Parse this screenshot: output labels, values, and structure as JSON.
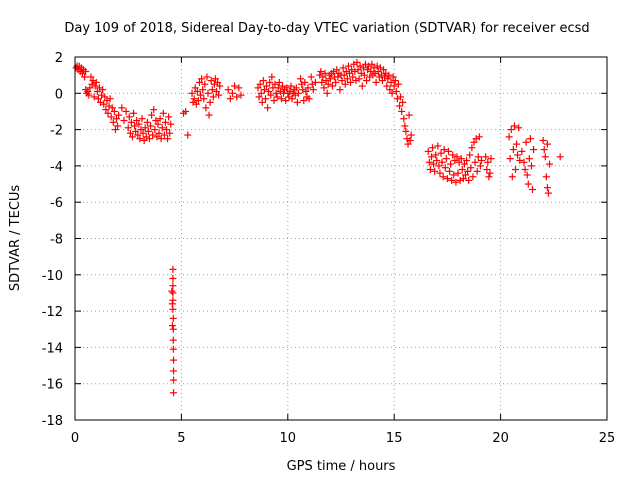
{
  "chart_data": {
    "type": "scatter",
    "title": "Day 109 of 2018, Sidereal Day-to-day VTEC variation (SDTVAR) for receiver ecsd",
    "xlabel": "GPS time / hours",
    "ylabel": "SDTVAR / TECUs",
    "xlim": [
      0,
      25
    ],
    "ylim": [
      -18,
      2
    ],
    "xticks": [
      0,
      5,
      10,
      15,
      20,
      25
    ],
    "yticks": [
      -18,
      -16,
      -14,
      -12,
      -10,
      -8,
      -6,
      -4,
      -2,
      0,
      2
    ],
    "grid": true,
    "marker": "+",
    "color": "#ff0000",
    "points": [
      [
        0.05,
        1.4
      ],
      [
        0.1,
        1.5
      ],
      [
        0.15,
        1.3
      ],
      [
        0.2,
        1.5
      ],
      [
        0.25,
        1.2
      ],
      [
        0.3,
        1.4
      ],
      [
        0.35,
        1.1
      ],
      [
        0.4,
        1.3
      ],
      [
        0.45,
        0.9
      ],
      [
        0.5,
        1.2
      ],
      [
        0.5,
        0.2
      ],
      [
        0.55,
        0.0
      ],
      [
        0.6,
        0.1
      ],
      [
        0.65,
        -0.1
      ],
      [
        0.7,
        0.3
      ],
      [
        0.75,
        0.9
      ],
      [
        0.8,
        0.5
      ],
      [
        0.85,
        0.7
      ],
      [
        0.9,
        -0.2
      ],
      [
        0.95,
        0.4
      ],
      [
        1.0,
        0.6
      ],
      [
        1.05,
        0.1
      ],
      [
        1.1,
        -0.3
      ],
      [
        1.15,
        0.3
      ],
      [
        1.2,
        -0.5
      ],
      [
        1.25,
        -0.1
      ],
      [
        1.3,
        0.2
      ],
      [
        1.35,
        -0.6
      ],
      [
        1.4,
        -0.2
      ],
      [
        1.45,
        -0.9
      ],
      [
        1.5,
        -0.4
      ],
      [
        1.55,
        -1.1
      ],
      [
        1.6,
        -0.7
      ],
      [
        1.65,
        -0.3
      ],
      [
        1.7,
        -1.3
      ],
      [
        1.75,
        -0.8
      ],
      [
        1.8,
        -1.6
      ],
      [
        1.85,
        -1.0
      ],
      [
        1.9,
        -2.0
      ],
      [
        1.95,
        -1.4
      ],
      [
        2.0,
        -1.8
      ],
      [
        2.05,
        -1.2
      ],
      [
        2.2,
        -0.8
      ],
      [
        2.3,
        -1.5
      ],
      [
        2.4,
        -1.0
      ],
      [
        2.5,
        -1.9
      ],
      [
        2.55,
        -1.3
      ],
      [
        2.6,
        -2.2
      ],
      [
        2.65,
        -1.6
      ],
      [
        2.7,
        -2.4
      ],
      [
        2.75,
        -1.1
      ],
      [
        2.8,
        -1.8
      ],
      [
        2.85,
        -2.1
      ],
      [
        2.9,
        -1.5
      ],
      [
        2.95,
        -2.3
      ],
      [
        3.0,
        -1.7
      ],
      [
        3.05,
        -2.5
      ],
      [
        3.1,
        -2.0
      ],
      [
        3.15,
        -1.4
      ],
      [
        3.2,
        -2.2
      ],
      [
        3.25,
        -2.6
      ],
      [
        3.3,
        -1.9
      ],
      [
        3.35,
        -2.4
      ],
      [
        3.4,
        -1.6
      ],
      [
        3.45,
        -2.1
      ],
      [
        3.5,
        -2.5
      ],
      [
        3.55,
        -1.8
      ],
      [
        3.6,
        -1.2
      ],
      [
        3.65,
        -2.3
      ],
      [
        3.7,
        -0.9
      ],
      [
        3.75,
        -2.0
      ],
      [
        3.8,
        -1.5
      ],
      [
        3.85,
        -2.4
      ],
      [
        3.9,
        -1.7
      ],
      [
        3.95,
        -2.2
      ],
      [
        4.0,
        -1.4
      ],
      [
        4.05,
        -2.5
      ],
      [
        4.1,
        -1.9
      ],
      [
        4.15,
        -1.1
      ],
      [
        4.2,
        -2.3
      ],
      [
        4.25,
        -1.6
      ],
      [
        4.3,
        -2.0
      ],
      [
        4.35,
        -2.5
      ],
      [
        4.4,
        -1.3
      ],
      [
        4.45,
        -2.2
      ],
      [
        4.5,
        -1.7
      ],
      [
        4.6,
        -9.7
      ],
      [
        4.6,
        -10.2
      ],
      [
        4.6,
        -10.6
      ],
      [
        4.6,
        -11.0
      ],
      [
        4.6,
        -11.4
      ],
      [
        4.6,
        -11.9
      ],
      [
        4.62,
        -12.4
      ],
      [
        4.62,
        -13.0
      ],
      [
        4.62,
        -13.6
      ],
      [
        4.62,
        -14.1
      ],
      [
        4.63,
        -14.7
      ],
      [
        4.63,
        -15.3
      ],
      [
        4.63,
        -15.8
      ],
      [
        4.63,
        -16.5
      ],
      [
        4.55,
        -10.9
      ],
      [
        4.57,
        -11.6
      ],
      [
        4.58,
        -12.8
      ],
      [
        5.1,
        -1.1
      ],
      [
        5.2,
        -1.0
      ],
      [
        5.3,
        -2.3
      ],
      [
        5.5,
        0.0
      ],
      [
        5.55,
        -0.5
      ],
      [
        5.6,
        -0.3
      ],
      [
        5.65,
        0.3
      ],
      [
        5.7,
        -0.6
      ],
      [
        5.75,
        0.1
      ],
      [
        5.8,
        -0.4
      ],
      [
        5.85,
        0.6
      ],
      [
        5.9,
        -0.1
      ],
      [
        5.95,
        0.8
      ],
      [
        6.0,
        0.2
      ],
      [
        6.05,
        -0.3
      ],
      [
        6.1,
        0.5
      ],
      [
        6.15,
        -0.8
      ],
      [
        6.2,
        0.9
      ],
      [
        6.25,
        0.0
      ],
      [
        6.3,
        -1.2
      ],
      [
        6.35,
        -0.5
      ],
      [
        6.4,
        0.7
      ],
      [
        6.45,
        0.2
      ],
      [
        6.5,
        -0.2
      ],
      [
        6.55,
        0.5
      ],
      [
        6.6,
        0.8
      ],
      [
        6.65,
        0.1
      ],
      [
        6.7,
        0.6
      ],
      [
        6.75,
        -0.1
      ],
      [
        6.8,
        0.4
      ],
      [
        7.2,
        0.2
      ],
      [
        7.3,
        -0.3
      ],
      [
        7.4,
        0.0
      ],
      [
        7.5,
        0.4
      ],
      [
        7.6,
        -0.2
      ],
      [
        7.7,
        0.3
      ],
      [
        7.8,
        -0.1
      ],
      [
        8.6,
        0.3
      ],
      [
        8.65,
        -0.2
      ],
      [
        8.7,
        0.5
      ],
      [
        8.75,
        0.0
      ],
      [
        8.8,
        -0.5
      ],
      [
        8.85,
        0.7
      ],
      [
        8.9,
        0.2
      ],
      [
        8.95,
        -0.3
      ],
      [
        9.0,
        0.4
      ],
      [
        9.05,
        -0.8
      ],
      [
        9.1,
        0.1
      ],
      [
        9.15,
        0.6
      ],
      [
        9.2,
        -0.1
      ],
      [
        9.25,
        0.9
      ],
      [
        9.3,
        0.3
      ],
      [
        9.35,
        -0.4
      ],
      [
        9.4,
        0.5
      ],
      [
        9.45,
        0.0
      ],
      [
        9.5,
        -0.2
      ],
      [
        9.55,
        0.3
      ],
      [
        9.6,
        0.6
      ],
      [
        9.65,
        0.1
      ],
      [
        9.7,
        -0.3
      ],
      [
        9.75,
        0.4
      ],
      [
        9.8,
        0.0
      ],
      [
        9.85,
        0.2
      ],
      [
        9.9,
        -0.4
      ],
      [
        9.95,
        0.3
      ],
      [
        10.0,
        0.0
      ],
      [
        10.05,
        -0.2
      ],
      [
        10.1,
        0.1
      ],
      [
        10.15,
        0.4
      ],
      [
        10.2,
        -0.3
      ],
      [
        10.25,
        0.0
      ],
      [
        10.3,
        0.2
      ],
      [
        10.35,
        -0.1
      ],
      [
        10.4,
        0.3
      ],
      [
        10.45,
        -0.5
      ],
      [
        10.5,
        0.0
      ],
      [
        10.6,
        0.8
      ],
      [
        10.65,
        0.5
      ],
      [
        10.7,
        0.2
      ],
      [
        10.75,
        -0.4
      ],
      [
        10.8,
        0.6
      ],
      [
        10.85,
        0.1
      ],
      [
        10.9,
        -0.2
      ],
      [
        10.95,
        0.3
      ],
      [
        11.0,
        -0.3
      ],
      [
        11.1,
        0.9
      ],
      [
        11.15,
        0.5
      ],
      [
        11.2,
        0.2
      ],
      [
        11.3,
        0.6
      ],
      [
        11.5,
        1.0
      ],
      [
        11.55,
        1.2
      ],
      [
        11.6,
        0.6
      ],
      [
        11.65,
        0.9
      ],
      [
        11.7,
        0.3
      ],
      [
        11.75,
        1.1
      ],
      [
        11.8,
        0.7
      ],
      [
        11.85,
        0.0
      ],
      [
        11.9,
        0.5
      ],
      [
        11.95,
        1.0
      ],
      [
        12.0,
        0.8
      ],
      [
        12.05,
        1.1
      ],
      [
        12.1,
        0.4
      ],
      [
        12.15,
        1.2
      ],
      [
        12.2,
        0.9
      ],
      [
        12.25,
        0.6
      ],
      [
        12.3,
        1.3
      ],
      [
        12.35,
        0.9
      ],
      [
        12.4,
        1.1
      ],
      [
        12.45,
        0.2
      ],
      [
        12.5,
        1.0
      ],
      [
        12.55,
        0.7
      ],
      [
        12.6,
        1.4
      ],
      [
        12.65,
        1.0
      ],
      [
        12.7,
        0.5
      ],
      [
        12.75,
        1.2
      ],
      [
        12.8,
        0.8
      ],
      [
        12.85,
        1.5
      ],
      [
        12.9,
        1.1
      ],
      [
        12.95,
        0.6
      ],
      [
        13.0,
        1.3
      ],
      [
        13.05,
        0.9
      ],
      [
        13.1,
        1.6
      ],
      [
        13.15,
        1.2
      ],
      [
        13.2,
        0.7
      ],
      [
        13.25,
        1.7
      ],
      [
        13.3,
        1.3
      ],
      [
        13.35,
        0.8
      ],
      [
        13.4,
        1.5
      ],
      [
        13.45,
        1.1
      ],
      [
        13.5,
        0.4
      ],
      [
        13.55,
        1.4
      ],
      [
        13.6,
        1.0
      ],
      [
        13.65,
        1.6
      ],
      [
        13.7,
        0.7
      ],
      [
        13.75,
        1.3
      ],
      [
        13.8,
        1.5
      ],
      [
        13.85,
        0.9
      ],
      [
        13.9,
        1.2
      ],
      [
        13.95,
        1.6
      ],
      [
        14.0,
        1.0
      ],
      [
        14.05,
        1.4
      ],
      [
        14.1,
        1.1
      ],
      [
        14.15,
        0.6
      ],
      [
        14.2,
        1.5
      ],
      [
        14.25,
        1.2
      ],
      [
        14.3,
        0.9
      ],
      [
        14.35,
        1.4
      ],
      [
        14.4,
        1.0
      ],
      [
        14.45,
        0.7
      ],
      [
        14.5,
        1.3
      ],
      [
        14.55,
        0.9
      ],
      [
        14.6,
        1.1
      ],
      [
        14.65,
        0.4
      ],
      [
        14.7,
        0.8
      ],
      [
        14.75,
        1.0
      ],
      [
        14.8,
        0.2
      ],
      [
        14.85,
        0.6
      ],
      [
        14.9,
        0.0
      ],
      [
        14.95,
        0.9
      ],
      [
        15.0,
        0.4
      ],
      [
        15.05,
        0.7
      ],
      [
        15.1,
        0.1
      ],
      [
        15.15,
        -0.3
      ],
      [
        15.2,
        0.5
      ],
      [
        15.25,
        -0.7
      ],
      [
        15.3,
        -0.2
      ],
      [
        15.35,
        -1.0
      ],
      [
        15.4,
        -0.5
      ],
      [
        15.45,
        -1.4
      ],
      [
        15.5,
        -1.8
      ],
      [
        15.55,
        -2.1
      ],
      [
        15.6,
        -2.5
      ],
      [
        15.65,
        -2.8
      ],
      [
        15.7,
        -1.2
      ],
      [
        15.75,
        -2.6
      ],
      [
        15.8,
        -2.3
      ],
      [
        16.6,
        -3.2
      ],
      [
        16.65,
        -3.8
      ],
      [
        16.7,
        -4.2
      ],
      [
        16.75,
        -3.5
      ],
      [
        16.8,
        -3.0
      ],
      [
        16.85,
        -3.9
      ],
      [
        16.9,
        -4.3
      ],
      [
        16.95,
        -3.4
      ],
      [
        17.0,
        -3.7
      ],
      [
        17.05,
        -2.9
      ],
      [
        17.1,
        -4.0
      ],
      [
        17.15,
        -4.4
      ],
      [
        17.2,
        -3.3
      ],
      [
        17.25,
        -3.8
      ],
      [
        17.3,
        -4.6
      ],
      [
        17.35,
        -3.1
      ],
      [
        17.4,
        -4.1
      ],
      [
        17.45,
        -3.6
      ],
      [
        17.5,
        -4.7
      ],
      [
        17.55,
        -3.2
      ],
      [
        17.6,
        -4.3
      ],
      [
        17.65,
        -3.9
      ],
      [
        17.7,
        -4.8
      ],
      [
        17.75,
        -3.4
      ],
      [
        17.8,
        -4.5
      ],
      [
        17.85,
        -3.7
      ],
      [
        17.9,
        -4.9
      ],
      [
        17.95,
        -3.5
      ],
      [
        18.0,
        -4.4
      ],
      [
        18.05,
        -3.8
      ],
      [
        18.1,
        -4.8
      ],
      [
        18.15,
        -3.6
      ],
      [
        18.2,
        -4.2
      ],
      [
        18.25,
        -4.7
      ],
      [
        18.3,
        -3.9
      ],
      [
        18.35,
        -4.5
      ],
      [
        18.4,
        -3.7
      ],
      [
        18.45,
        -4.3
      ],
      [
        18.5,
        -4.8
      ],
      [
        18.55,
        -3.4
      ],
      [
        18.6,
        -4.1
      ],
      [
        18.65,
        -3.0
      ],
      [
        18.7,
        -4.6
      ],
      [
        18.75,
        -2.7
      ],
      [
        18.8,
        -3.8
      ],
      [
        18.85,
        -2.5
      ],
      [
        18.9,
        -4.3
      ],
      [
        18.95,
        -3.5
      ],
      [
        19.0,
        -2.4
      ],
      [
        19.05,
        -4.0
      ],
      [
        19.1,
        -3.7
      ],
      [
        19.3,
        -3.5
      ],
      [
        19.35,
        -4.2
      ],
      [
        19.4,
        -3.8
      ],
      [
        19.45,
        -4.6
      ],
      [
        19.5,
        -4.4
      ],
      [
        19.55,
        -3.6
      ],
      [
        20.4,
        -2.4
      ],
      [
        20.45,
        -3.6
      ],
      [
        20.5,
        -2.0
      ],
      [
        20.55,
        -4.6
      ],
      [
        20.6,
        -3.1
      ],
      [
        20.65,
        -1.8
      ],
      [
        20.7,
        -4.2
      ],
      [
        20.75,
        -2.8
      ],
      [
        20.8,
        -3.4
      ],
      [
        20.85,
        -1.9
      ],
      [
        20.9,
        -3.7
      ],
      [
        21.0,
        -3.2
      ],
      [
        21.1,
        -3.8
      ],
      [
        21.15,
        -4.2
      ],
      [
        21.2,
        -2.7
      ],
      [
        21.25,
        -4.5
      ],
      [
        21.3,
        -5.0
      ],
      [
        21.35,
        -3.6
      ],
      [
        21.4,
        -2.5
      ],
      [
        21.45,
        -4.0
      ],
      [
        21.5,
        -5.3
      ],
      [
        21.55,
        -3.1
      ],
      [
        22.0,
        -2.6
      ],
      [
        22.05,
        -3.1
      ],
      [
        22.1,
        -3.5
      ],
      [
        22.15,
        -4.6
      ],
      [
        22.2,
        -5.2
      ],
      [
        22.25,
        -5.5
      ],
      [
        22.3,
        -3.9
      ],
      [
        22.2,
        -2.8
      ],
      [
        22.8,
        -3.5
      ]
    ]
  }
}
